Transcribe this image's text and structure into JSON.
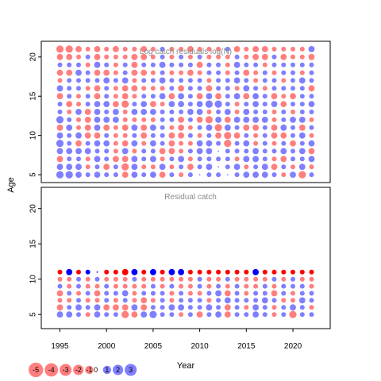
{
  "chart_data": [
    {
      "type": "scatter",
      "title": "Log catch residuals log(N)",
      "xlabel": "",
      "ylabel": "Age",
      "xlim": [
        1993,
        2024
      ],
      "ylim": [
        4,
        22
      ],
      "yticks": [
        5,
        10,
        15,
        20
      ],
      "years": [
        1995,
        1996,
        1997,
        1998,
        1999,
        2000,
        2001,
        2002,
        2003,
        2004,
        2005,
        2006,
        2007,
        2008,
        2009,
        2010,
        2011,
        2012,
        2013,
        2014,
        2015,
        2016,
        2017,
        2018,
        2019,
        2020,
        2021,
        2022
      ],
      "ages": [
        5,
        21
      ],
      "residuals_by_age": [
        [
          3,
          3,
          2,
          1,
          2,
          1,
          1,
          -2,
          2,
          1,
          2,
          -2,
          1,
          -1,
          1,
          0,
          1,
          1,
          0,
          1,
          2,
          2,
          2,
          1,
          -1,
          2,
          -3,
          1
        ],
        [
          2,
          2,
          2,
          -1,
          1,
          -2,
          1,
          -3,
          2,
          -1,
          -1,
          2,
          -1,
          1,
          -2,
          1,
          2,
          0,
          1,
          2,
          -1,
          1,
          2,
          -2,
          1,
          -1,
          2,
          -1
        ],
        [
          -2,
          1,
          1,
          -1,
          2,
          1,
          -2,
          -2,
          2,
          1,
          2,
          -1,
          1,
          2,
          -1,
          1,
          1,
          1,
          1,
          -1,
          2,
          2,
          1,
          -1,
          -2,
          1,
          1,
          2
        ],
        [
          2,
          2,
          2,
          2,
          1,
          1,
          -1,
          2,
          -1,
          1,
          1,
          -2,
          -2,
          -1,
          1,
          2,
          2,
          0,
          1,
          1,
          1,
          2,
          1,
          1,
          2,
          1,
          2,
          -2
        ],
        [
          3,
          1,
          -2,
          1,
          2,
          2,
          -1,
          -2,
          2,
          -1,
          2,
          1,
          -2,
          -1,
          -1,
          2,
          2,
          1,
          -3,
          1,
          2,
          -1,
          1,
          -1,
          1,
          -2,
          1,
          2
        ],
        [
          2,
          1,
          2,
          -2,
          -2,
          1,
          -1,
          -1,
          1,
          -2,
          1,
          1,
          -2,
          -2,
          1,
          -1,
          1,
          -2,
          -3,
          -2,
          1,
          -1,
          1,
          -2,
          -2,
          1,
          2,
          -1
        ],
        [
          -2,
          2,
          -1,
          -2,
          2,
          -2,
          -1,
          -2,
          2,
          -2,
          2,
          1,
          -1,
          -2,
          -1,
          1,
          2,
          -3,
          2,
          1,
          -2,
          -2,
          1,
          -2,
          2,
          1,
          -2,
          1
        ],
        [
          3,
          1,
          -1,
          -2,
          2,
          2,
          2,
          -1,
          -1,
          -1,
          -1,
          1,
          1,
          -2,
          1,
          -2,
          -3,
          2,
          -2,
          2,
          2,
          2,
          2,
          -1,
          1,
          2,
          2,
          -1
        ],
        [
          1,
          -1,
          2,
          -2,
          2,
          1,
          2,
          -1,
          2,
          2,
          2,
          1,
          1,
          1,
          2,
          2,
          -1,
          1,
          2,
          -1,
          2,
          1,
          1,
          -1,
          1,
          -1,
          1,
          1
        ],
        [
          1,
          -2,
          -1,
          1,
          2,
          2,
          -2,
          -3,
          1,
          2,
          -2,
          -1,
          2,
          2,
          1,
          2,
          3,
          3,
          1,
          -1,
          1,
          2,
          1,
          2,
          -2,
          1,
          1,
          2
        ],
        [
          -2,
          1,
          -1,
          1,
          -2,
          1,
          -1,
          -2,
          -1,
          1,
          1,
          2,
          -2,
          2,
          1,
          -2,
          2,
          -2,
          1,
          2,
          -2,
          2,
          1,
          -2,
          -1,
          -2,
          1,
          1
        ],
        [
          2,
          1,
          1,
          -1,
          -2,
          1,
          -1,
          -2,
          -2,
          -1,
          -1,
          -1,
          1,
          -2,
          1,
          1,
          -2,
          1,
          1,
          -1,
          2,
          1,
          -1,
          1,
          1,
          1,
          1,
          -2
        ],
        [
          -1,
          1,
          1,
          1,
          1,
          2,
          1,
          2,
          -1,
          1,
          1,
          2,
          1,
          1,
          1,
          1,
          -1,
          1,
          1,
          2,
          1,
          -1,
          1,
          1,
          -1,
          1,
          2,
          1
        ],
        [
          -2,
          -2,
          2,
          1,
          -2,
          -2,
          -1,
          1,
          -2,
          -2,
          -1,
          1,
          -1,
          -1,
          -2,
          -1,
          1,
          1,
          -1,
          1,
          -2,
          -1,
          1,
          -1,
          1,
          1,
          -1,
          1
        ],
        [
          1,
          1,
          1,
          -1,
          2,
          1,
          -1,
          1,
          -2,
          1,
          1,
          2,
          1,
          1,
          1,
          -2,
          1,
          1,
          -1,
          2,
          1,
          1,
          -1,
          1,
          1,
          1,
          1,
          1
        ],
        [
          -2,
          -2,
          -1,
          1,
          -2,
          -1,
          -1,
          -1,
          -2,
          -2,
          -1,
          1,
          -1,
          1,
          -1,
          1,
          -1,
          -1,
          -1,
          1,
          -1,
          -2,
          -2,
          1,
          -2,
          -1,
          -1,
          -2
        ],
        [
          -3,
          -3,
          -2,
          -1,
          -2,
          -1,
          -2,
          -1,
          -1,
          -2,
          -1,
          1,
          -1,
          -1,
          -2,
          -1,
          -1,
          -1,
          1,
          -2,
          -1,
          -2,
          -2,
          -1,
          -1,
          -1,
          -1,
          2
        ]
      ]
    },
    {
      "type": "scatter",
      "title": "Residual catch",
      "xlabel": "Year",
      "ylabel": "",
      "xlim": [
        1993,
        2024
      ],
      "ylim": [
        3,
        23
      ],
      "xticks": [
        1995,
        2000,
        2005,
        2010,
        2015,
        2020
      ],
      "yticks": [
        5,
        10,
        15,
        20
      ],
      "years": [
        1995,
        1996,
        1997,
        1998,
        1999,
        2000,
        2001,
        2002,
        2003,
        2004,
        2005,
        2006,
        2007,
        2008,
        2009,
        2010,
        2011,
        2012,
        2013,
        2014,
        2015,
        2016,
        2017,
        2018,
        2019,
        2020,
        2021,
        2022
      ],
      "ages": [
        5,
        11
      ],
      "residuals_by_age": [
        [
          2,
          2,
          1,
          -1,
          2,
          1,
          1,
          -3,
          -2,
          2,
          3,
          1,
          1,
          -1,
          1,
          -2,
          1,
          2,
          -2,
          1,
          1,
          2,
          1,
          -1,
          1,
          -3,
          1,
          1
        ],
        [
          -2,
          1,
          2,
          1,
          2,
          -2,
          -2,
          -2,
          2,
          -2,
          1,
          1,
          2,
          2,
          1,
          1,
          2,
          1,
          -2,
          1,
          -1,
          2,
          1,
          -1,
          1,
          2,
          1,
          -1
        ],
        [
          -1,
          -1,
          1,
          -1,
          -1,
          1,
          -1,
          1,
          -1,
          -2,
          -1,
          1,
          -1,
          1,
          1,
          1,
          -1,
          1,
          2,
          1,
          1,
          1,
          2,
          1,
          -1,
          -1,
          2,
          1
        ],
        [
          -2,
          1,
          -1,
          1,
          -2,
          1,
          1,
          2,
          -1,
          1,
          1,
          1,
          -1,
          1,
          -1,
          -1,
          1,
          2,
          -2,
          1,
          -1,
          1,
          1,
          -2,
          1,
          -1,
          1,
          1
        ],
        [
          1,
          -1,
          1,
          -1,
          -1,
          1,
          -1,
          -1,
          -1,
          -1,
          1,
          -1,
          1,
          -1,
          -1,
          1,
          -1,
          1,
          -1,
          1,
          -1,
          -1,
          1,
          -1,
          1,
          1,
          1,
          -1
        ],
        [
          -1,
          -1,
          1,
          -1,
          1,
          -1,
          -1,
          -1,
          1,
          -1,
          -1,
          -1,
          -1,
          -1,
          -1,
          1,
          -1,
          -1,
          1,
          -1,
          -1,
          -1,
          -1,
          1,
          -1,
          1,
          -1,
          -1
        ],
        [
          -1,
          2,
          -1,
          1,
          0,
          -1,
          -1,
          -2,
          2,
          -1,
          2,
          -1,
          2,
          2,
          -1,
          -1,
          -1,
          -1,
          -1,
          -1,
          -1,
          2,
          -1,
          -1,
          -1,
          -1,
          -1,
          -1
        ]
      ]
    }
  ],
  "legend": {
    "values": [
      -5,
      -4,
      -3,
      -2,
      -1,
      0,
      1,
      2,
      3
    ],
    "labels": [
      "-5",
      "-4",
      "-3",
      "-2",
      "-1",
      "0",
      "1",
      "2",
      "3"
    ]
  },
  "colors": {
    "negative": "#ff4d4d",
    "positive": "#4d4dff",
    "strong_negative": "#ff0000",
    "strong_positive": "#0000ff"
  }
}
